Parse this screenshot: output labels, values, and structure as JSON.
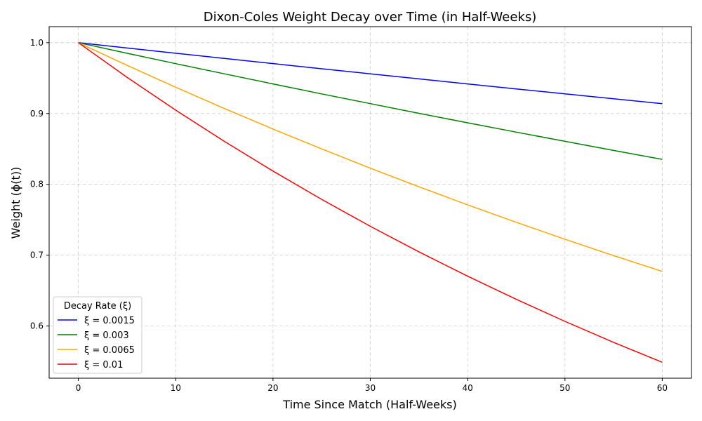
{
  "chart_data": {
    "type": "line",
    "title": "Dixon-Coles Weight Decay over Time (in Half-Weeks)",
    "xlabel": "Time Since Match (Half-Weeks)",
    "ylabel": "Weight (ϕ(t))",
    "xlim": [
      -3,
      63
    ],
    "ylim": [
      0.5263,
      1.0226
    ],
    "xticks": [
      0,
      10,
      20,
      30,
      40,
      50,
      60
    ],
    "yticks": [
      0.6,
      0.7,
      0.8,
      0.9,
      1.0
    ],
    "ytick_labels": [
      "0.6",
      "0.7",
      "0.8",
      "0.9",
      "1.0"
    ],
    "grid": true,
    "legend": {
      "title": "Decay Rate (ξ)",
      "placement": "lower-left"
    },
    "x": [
      0,
      5,
      10,
      15,
      20,
      25,
      30,
      35,
      40,
      45,
      50,
      55,
      60
    ],
    "series": [
      {
        "name": "ξ = 0.0015",
        "color": "#0000ff",
        "values": [
          1,
          0.9925,
          0.9851,
          0.9778,
          0.9705,
          0.9632,
          0.956,
          0.9489,
          0.9418,
          0.9347,
          0.9277,
          0.9208,
          0.9139
        ]
      },
      {
        "name": "ξ = 0.003",
        "color": "#008000",
        "values": [
          1,
          0.9851,
          0.9704,
          0.956,
          0.9418,
          0.9277,
          0.9139,
          0.9003,
          0.8869,
          0.8737,
          0.8607,
          0.8479,
          0.8353
        ]
      },
      {
        "name": "ξ = 0.0065",
        "color": "#ffa500",
        "values": [
          1,
          0.968,
          0.9371,
          0.9071,
          0.8781,
          0.85,
          0.8228,
          0.7965,
          0.7711,
          0.7464,
          0.7225,
          0.6994,
          0.6771
        ]
      },
      {
        "name": "ξ = 0.01",
        "color": "#ff0000",
        "values": [
          1,
          0.9512,
          0.9048,
          0.8607,
          0.8187,
          0.7788,
          0.7408,
          0.7047,
          0.6703,
          0.6376,
          0.6065,
          0.5769,
          0.5488
        ]
      }
    ]
  }
}
